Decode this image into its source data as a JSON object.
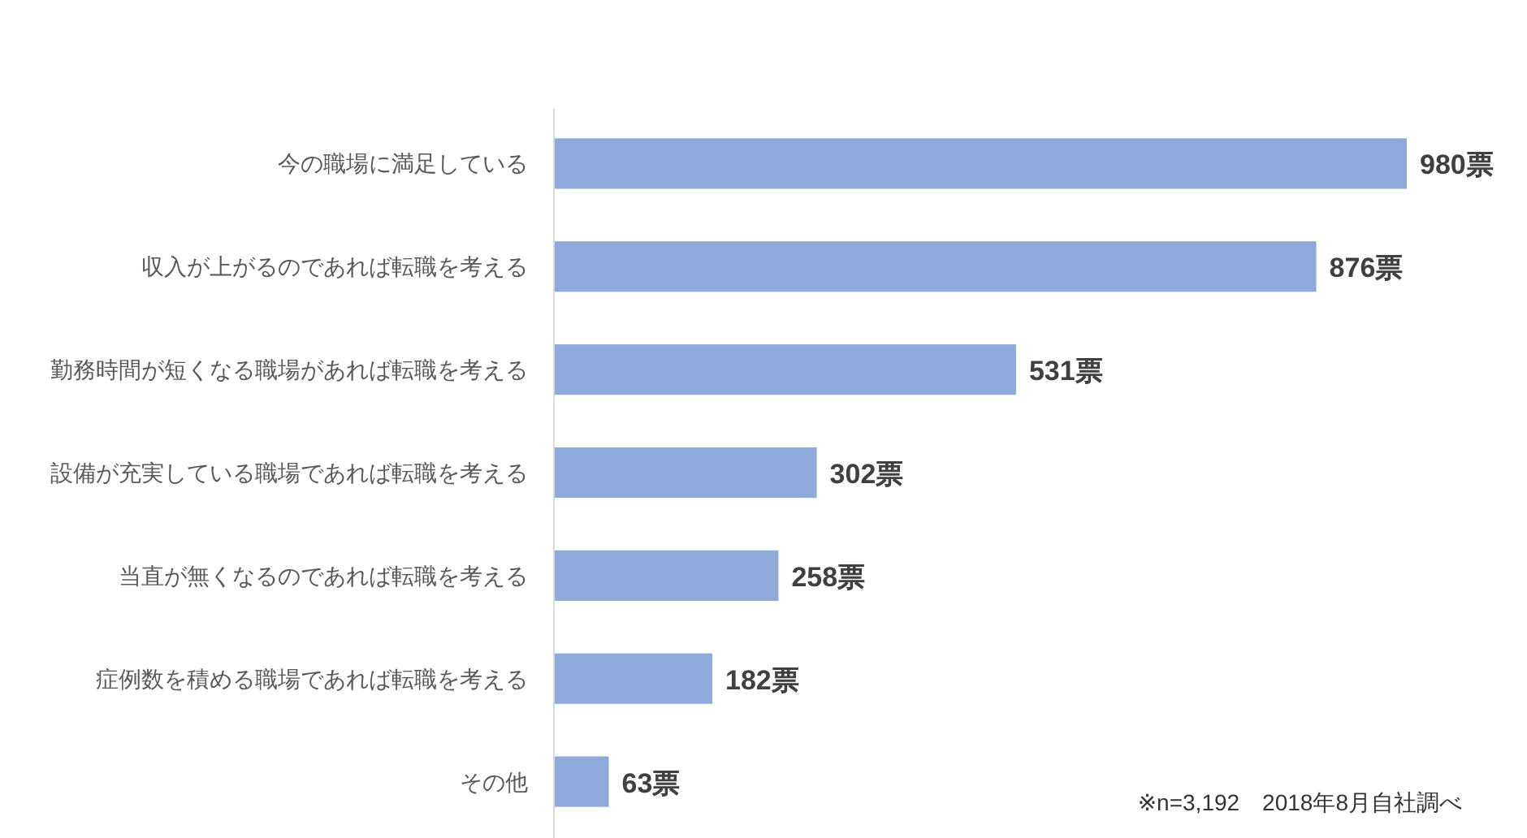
{
  "chart_data": {
    "type": "bar",
    "orientation": "horizontal",
    "categories": [
      "今の職場に満足している",
      "収入が上がるのであれば転職を考える",
      "勤務時間が短くなる職場があれば転職を考える",
      "設備が充実している職場であれば転職を考える",
      "当直が無くなるのであれば転職を考える",
      "症例数を積める職場であれば転職を考える",
      "その他"
    ],
    "values": [
      980,
      876,
      531,
      302,
      258,
      182,
      63
    ],
    "color": "#8eaadb",
    "value_labels": [
      "980票",
      "876票",
      "531票",
      "302票",
      "258票",
      "182票",
      "63票"
    ],
    "annotations": [
      "※n=3,192　2018年8月自社調べ"
    ]
  }
}
